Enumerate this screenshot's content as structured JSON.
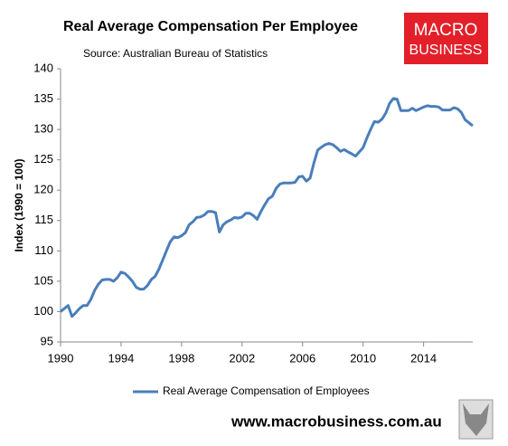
{
  "chart_data": {
    "type": "line",
    "title": "Real Average Compensation Per Employee",
    "subtitle": "Source: Australian Bureau of Statistics",
    "y_label": "Index (1990 = 100)",
    "logo": [
      "MACRO",
      "BUSINESS"
    ],
    "footer": "www.macrobusiness.com.au",
    "xlim": [
      1990,
      2017.25
    ],
    "xticks": [
      1990,
      1994,
      1998,
      2002,
      2006,
      2010,
      2014
    ],
    "ylim": [
      95,
      140
    ],
    "yticks": [
      95,
      100,
      105,
      110,
      115,
      120,
      125,
      130,
      135,
      140
    ],
    "grid": false,
    "legend": "bottom",
    "x": [
      1990,
      1990.25,
      1990.5,
      1990.75,
      1991,
      1991.25,
      1991.5,
      1991.75,
      1992,
      1992.25,
      1992.5,
      1992.75,
      1993,
      1993.25,
      1993.5,
      1993.75,
      1994,
      1994.25,
      1994.5,
      1994.75,
      1995,
      1995.25,
      1995.5,
      1995.75,
      1996,
      1996.25,
      1996.5,
      1996.75,
      1997,
      1997.25,
      1997.5,
      1997.75,
      1998,
      1998.25,
      1998.5,
      1998.75,
      1999,
      1999.25,
      1999.5,
      1999.75,
      2000,
      2000.25,
      2000.5,
      2000.75,
      2001,
      2001.25,
      2001.5,
      2001.75,
      2002,
      2002.25,
      2002.5,
      2002.75,
      2003,
      2003.25,
      2003.5,
      2003.75,
      2004,
      2004.25,
      2004.5,
      2004.75,
      2005,
      2005.25,
      2005.5,
      2005.75,
      2006,
      2006.25,
      2006.5,
      2006.75,
      2007,
      2007.25,
      2007.5,
      2007.75,
      2008,
      2008.25,
      2008.5,
      2008.75,
      2009,
      2009.25,
      2009.5,
      2009.75,
      2010,
      2010.25,
      2010.5,
      2010.75,
      2011,
      2011.25,
      2011.5,
      2011.75,
      2012,
      2012.25,
      2012.5,
      2012.75,
      2013,
      2013.25,
      2013.5,
      2013.75,
      2014,
      2014.25,
      2014.5,
      2014.75,
      2015,
      2015.25,
      2015.5,
      2015.75,
      2016,
      2016.25,
      2016.5,
      2016.75,
      2017,
      2017.25
    ],
    "series": [
      {
        "name": "Real Average Compensation of Employees",
        "color": "#4a7ebb",
        "values": [
          100,
          100.5,
          101,
          99.2,
          99.8,
          100.5,
          101,
          101,
          102,
          103.5,
          104.5,
          105.2,
          105.3,
          105.3,
          105,
          105.6,
          106.5,
          106.3,
          105.7,
          105,
          104,
          103.7,
          103.7,
          104.3,
          105.3,
          105.8,
          107,
          108.5,
          110,
          111.5,
          112.3,
          112.2,
          112.5,
          113,
          114.3,
          114.8,
          115.5,
          115.6,
          115.9,
          116.5,
          116.5,
          116.3,
          113.1,
          114.3,
          114.8,
          115.1,
          115.5,
          115.4,
          115.6,
          116.2,
          116.2,
          115.8,
          115.2,
          116.5,
          117.6,
          118.6,
          119,
          120.3,
          121,
          121.2,
          121.2,
          121.2,
          121.3,
          122.2,
          122.3,
          121.5,
          122,
          124.5,
          126.6,
          127.1,
          127.5,
          127.7,
          127.5,
          127,
          126.4,
          126.7,
          126.3,
          126,
          125.6,
          126.3,
          127,
          128.6,
          130,
          131.3,
          131.2,
          131.7,
          132.7,
          134.3,
          135.1,
          135,
          133.1,
          133.1,
          133.1,
          133.5,
          133.1,
          133.4,
          133.7,
          133.9,
          133.8,
          133.8,
          133.7,
          133.2,
          133.2,
          133.2,
          133.6,
          133.4,
          132.8,
          131.6,
          131.1,
          130.6
        ]
      }
    ]
  }
}
